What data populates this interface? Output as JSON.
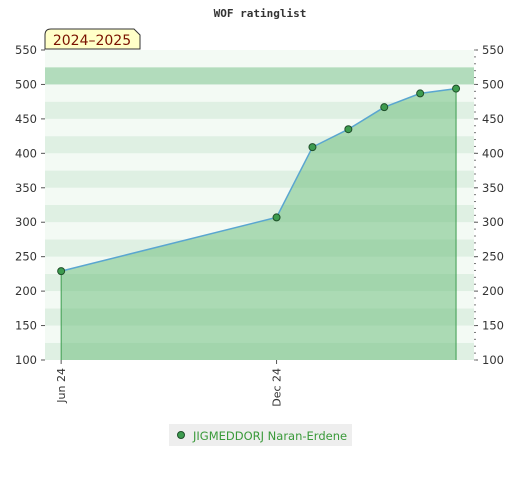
{
  "chart_data": {
    "type": "area",
    "title": "WOF ratinglist",
    "season_label": "2024–2025",
    "xlabel": "",
    "ylabel": "",
    "ylim": [
      100,
      550
    ],
    "y_ticks": [
      100,
      150,
      200,
      250,
      300,
      350,
      400,
      450,
      500,
      550
    ],
    "x_ticks": [
      {
        "label": "Jun 24",
        "x": 0
      },
      {
        "label": "Dec 24",
        "x": 6
      }
    ],
    "xlim": [
      -0.45,
      11.5
    ],
    "series": [
      {
        "name": "JIGMEDDORJ Naran-Erdene",
        "x": [
          0,
          6,
          7,
          8,
          9,
          10,
          11
        ],
        "values": [
          229,
          307,
          409,
          435,
          467,
          487,
          494
        ]
      }
    ],
    "legend_position": "bottom-center",
    "grid": false
  },
  "colors": {
    "line": "#5aa6d0",
    "fill": "#6fbf80",
    "marker": "#3d9c4f",
    "band_dark": "#b2dcbc",
    "band_light": "#dff0e3",
    "band_white": "#f3faf4",
    "season_bg": "#ffffc8"
  }
}
